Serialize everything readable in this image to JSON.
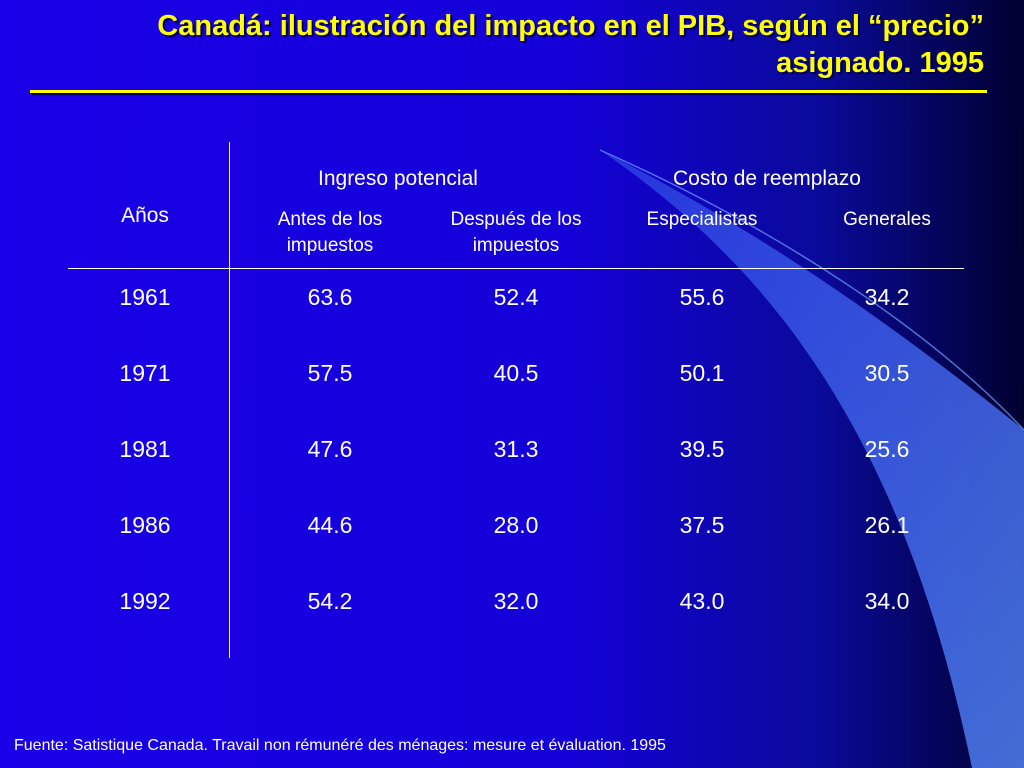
{
  "title": "Canadá: ilustración del impacto en el PIB, según el “precio” asignado. 1995",
  "table": {
    "years_header": "Años",
    "groups": [
      {
        "label": "Ingreso potencial"
      },
      {
        "label": "Costo de reemplazo"
      }
    ],
    "subheaders": [
      "Antes de los impuestos",
      "Después de los impuestos",
      "Especialistas",
      "Generales"
    ],
    "rows": [
      {
        "year": "1961",
        "values": [
          "63.6",
          "52.4",
          "55.6",
          "34.2"
        ]
      },
      {
        "year": "1971",
        "values": [
          "57.5",
          "40.5",
          "50.1",
          "30.5"
        ]
      },
      {
        "year": "1981",
        "values": [
          "47.6",
          "31.3",
          "39.5",
          "25.6"
        ]
      },
      {
        "year": "1986",
        "values": [
          "44.6",
          "28.0",
          "37.5",
          "26.1"
        ]
      },
      {
        "year": "1992",
        "values": [
          "54.2",
          "32.0",
          "43.0",
          "34.0"
        ]
      }
    ]
  },
  "footnote": "Fuente: Satistique Canada. Travail non rémunéré des ménages: mesure et évaluation. 1995",
  "colors": {
    "title": "#ffff00",
    "background": "#1a00e8",
    "accent_swoosh": "#3f6fe8"
  }
}
